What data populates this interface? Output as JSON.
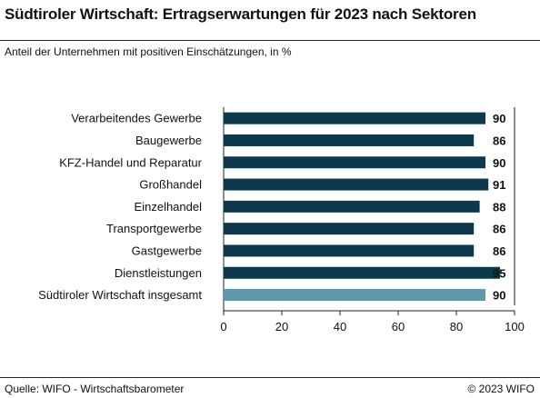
{
  "header": {
    "title": "Südtiroler Wirtschaft: Ertragserwartungen für 2023 nach Sektoren",
    "subtitle": "Anteil der Unternehmen mit positiven Einschätzungen, in %"
  },
  "footer": {
    "source": "Quelle: WIFO - Wirtschaftsbarometer",
    "copyright": "© 2023 WIFO"
  },
  "colors": {
    "bar": "#0c3a4c",
    "total_bar": "#5f97ad",
    "axis": "#222222"
  },
  "chart_data": {
    "type": "bar",
    "orientation": "horizontal",
    "title": "Südtiroler Wirtschaft: Ertragserwartungen für 2023 nach Sektoren",
    "subtitle": "Anteil der Unternehmen mit positiven Einschätzungen, in %",
    "categories": [
      "Verarbeitendes Gewerbe",
      "Baugewerbe",
      "KFZ-Handel und Reparatur",
      "Großhandel",
      "Einzelhandel",
      "Transportgewerbe",
      "Gastgewerbe",
      "Dienstleistungen",
      "Südtiroler Wirtschaft insgesamt"
    ],
    "values": [
      90,
      86,
      90,
      91,
      88,
      86,
      86,
      95,
      90
    ],
    "highlighted_category": "Südtiroler Wirtschaft insgesamt",
    "xlim": [
      0,
      100
    ],
    "xticks": [
      0,
      20,
      40,
      60,
      80,
      100
    ],
    "grid": false,
    "data_labels": true
  }
}
